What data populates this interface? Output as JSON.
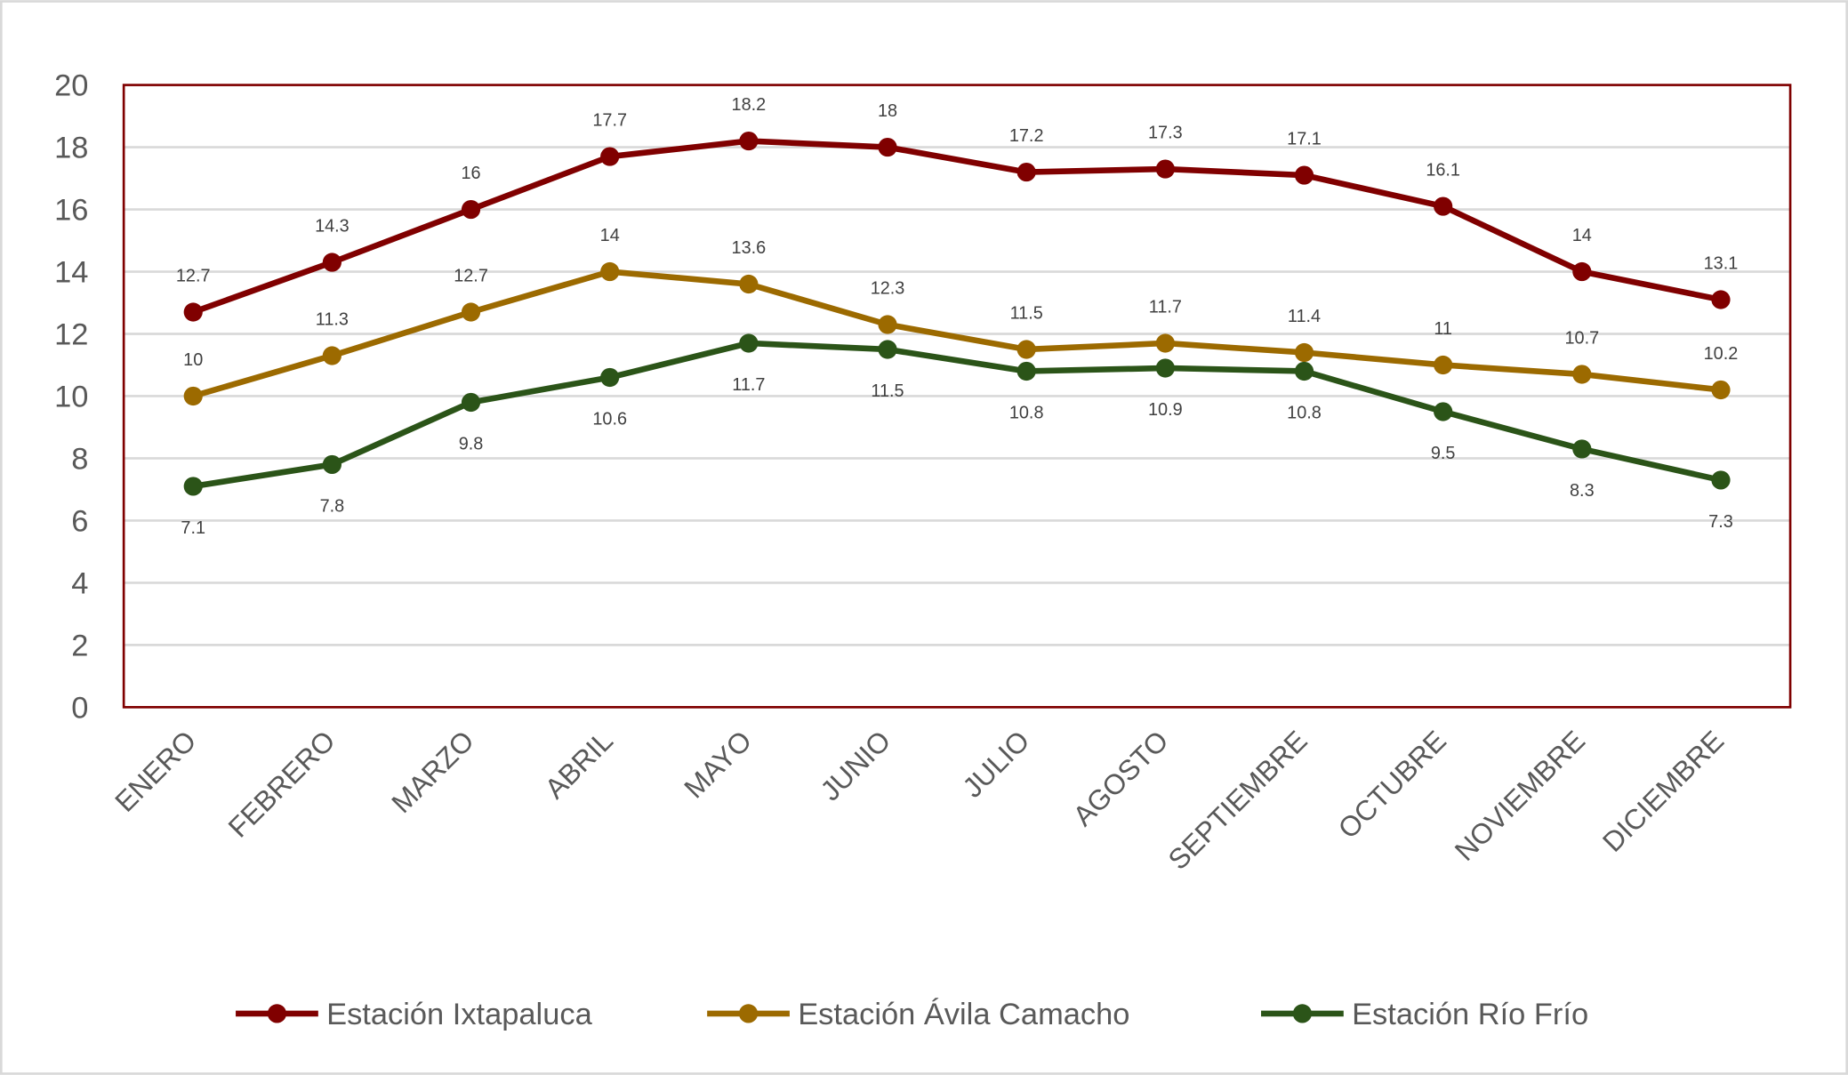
{
  "chart_data": {
    "type": "line",
    "title": "",
    "xlabel": "",
    "ylabel": "",
    "categories": [
      "ENERO",
      "FEBRERO",
      "MARZO",
      "ABRIL",
      "MAYO",
      "JUNIO",
      "JULIO",
      "AGOSTO",
      "SEPTIEMBRE",
      "OCTUBRE",
      "NOVIEMBRE",
      "DICIEMBRE"
    ],
    "ylim": [
      0,
      20
    ],
    "yticks": [
      0,
      2,
      4,
      6,
      8,
      10,
      12,
      14,
      16,
      18,
      20
    ],
    "grid": true,
    "legend_position": "bottom",
    "data_labels": true,
    "series": [
      {
        "name": "Estación Ixtapaluca",
        "color": "#800000",
        "label_position": "above",
        "values": [
          12.7,
          14.3,
          16,
          17.7,
          18.2,
          18,
          17.2,
          17.3,
          17.1,
          16.1,
          14,
          13.1
        ]
      },
      {
        "name": "Estación Ávila Camacho",
        "color": "#9C6A00",
        "label_position": "above",
        "values": [
          10,
          11.3,
          12.7,
          14,
          13.6,
          12.3,
          11.5,
          11.7,
          11.4,
          11,
          10.7,
          10.2
        ]
      },
      {
        "name": "Estación Río Frío",
        "color": "#2B5418",
        "label_position": "below",
        "values": [
          7.1,
          7.8,
          9.8,
          10.6,
          11.7,
          11.5,
          10.8,
          10.9,
          10.8,
          9.5,
          8.3,
          7.3
        ]
      }
    ],
    "plot_border_color": "#7F0000"
  }
}
